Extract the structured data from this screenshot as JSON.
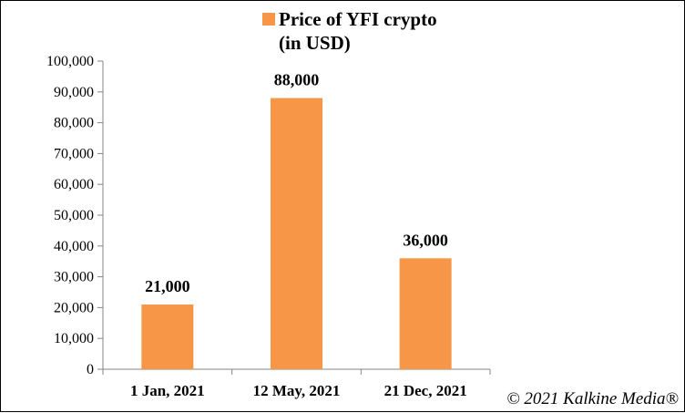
{
  "chart_data": {
    "type": "bar",
    "categories": [
      "1 Jan, 2021",
      "12 May, 2021",
      "21 Dec, 2021"
    ],
    "series": [
      {
        "name": "Price of YFI crypto (in USD)",
        "values": [
          21000,
          88000,
          36000
        ],
        "color": "#F79646"
      }
    ],
    "data_labels": [
      "21,000",
      "88,000",
      "36,000"
    ],
    "y_ticks": [
      "0",
      "10,000",
      "20,000",
      "30,000",
      "40,000",
      "50,000",
      "60,000",
      "70,000",
      "80,000",
      "90,000",
      "100,000"
    ],
    "ylim": [
      0,
      100000
    ],
    "legend": {
      "line1": "Price of YFI crypto",
      "line2": "(in USD)",
      "position": "top-center"
    },
    "grid": false,
    "xlabel": "",
    "ylabel": "",
    "title": ""
  },
  "credit": "© 2021 Kalkine Media®"
}
